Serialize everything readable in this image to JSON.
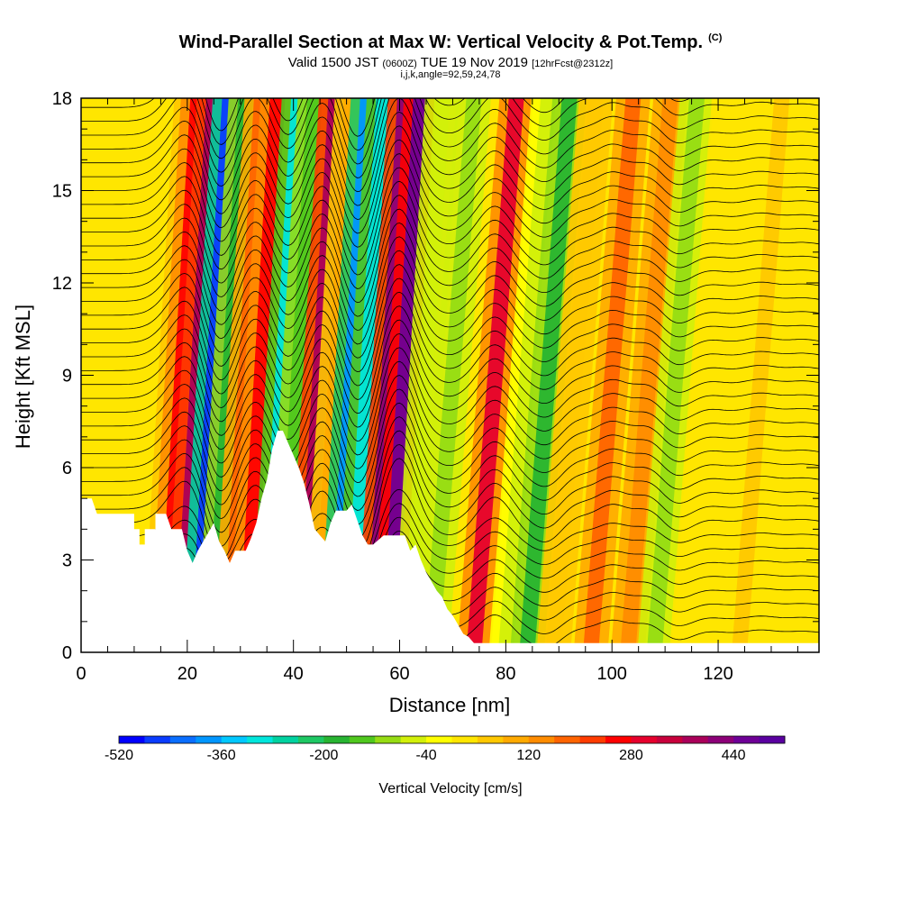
{
  "title": "Wind-Parallel Section at Max W: Vertical Velocity & Pot.Temp.",
  "title_mark": "(C)",
  "subtitle_main_a": "Valid 1500 JST",
  "subtitle_small_a": "(0600Z)",
  "subtitle_main_b": "TUE 19 Nov 2019",
  "subtitle_small_b": "[12hrFcst@2312z]",
  "subtitle_line3": "i,j,k,angle=92,59,24,78",
  "chart_data": {
    "type": "heatmap",
    "xlabel": "Distance [nm]",
    "ylabel": "Height [Kft MSL]",
    "xlim": [
      0,
      139
    ],
    "ylim": [
      0,
      18
    ],
    "x_ticks": [
      "0",
      "20",
      "40",
      "60",
      "80",
      "100",
      "120"
    ],
    "y_ticks": [
      "0",
      "3",
      "6",
      "9",
      "12",
      "15",
      "18"
    ],
    "colorbar": {
      "label": "Vertical Velocity [cm/s]",
      "tick_labels": [
        "-520",
        "-360",
        "-200",
        "-40",
        "120",
        "280",
        "440"
      ],
      "range": [
        -520,
        520
      ],
      "colors": [
        "#0000ff",
        "#0a3cff",
        "#0a6eff",
        "#0096ff",
        "#00c8ff",
        "#00e6dc",
        "#00d2a0",
        "#1ec864",
        "#28b432",
        "#50c81e",
        "#96dc14",
        "#d2f00a",
        "#ffff00",
        "#ffe600",
        "#ffc800",
        "#ffaa00",
        "#ff8c00",
        "#ff6400",
        "#ff3c00",
        "#ff0000",
        "#e6002d",
        "#c8003c",
        "#aa005a",
        "#8c0078",
        "#6e0096",
        "#5a00a0"
      ]
    },
    "vertical_velocity_bands": [
      {
        "x": 16,
        "w": 70
      },
      {
        "x": 19,
        "w": 260
      },
      {
        "x": 22,
        "w": 380
      },
      {
        "x": 25,
        "w": -480
      },
      {
        "x": 28,
        "w": -200
      },
      {
        "x": 31,
        "w": 180
      },
      {
        "x": 34,
        "w": 260
      },
      {
        "x": 38,
        "w": -300
      },
      {
        "x": 41,
        "w": -160
      },
      {
        "x": 45,
        "w": 400
      },
      {
        "x": 48,
        "w": 120
      },
      {
        "x": 51,
        "w": -380
      },
      {
        "x": 54,
        "w": -300
      },
      {
        "x": 58,
        "w": 420
      },
      {
        "x": 61,
        "w": 480
      },
      {
        "x": 65,
        "w": -80
      },
      {
        "x": 70,
        "w": -120
      },
      {
        "x": 78,
        "w": 300
      },
      {
        "x": 84,
        "w": -60
      },
      {
        "x": 88,
        "w": -200
      },
      {
        "x": 93,
        "w": 80
      },
      {
        "x": 100,
        "w": 200
      },
      {
        "x": 107,
        "w": 160
      },
      {
        "x": 112,
        "w": -120
      },
      {
        "x": 118,
        "w": 40
      },
      {
        "x": 128,
        "w": 60
      },
      {
        "x": 136,
        "w": 40
      }
    ],
    "terrain_height_kft": [
      [
        0,
        5.0
      ],
      [
        2,
        5.0
      ],
      [
        3,
        4.5
      ],
      [
        8,
        4.5
      ],
      [
        10,
        4.5
      ],
      [
        10,
        4.0
      ],
      [
        11,
        4.0
      ],
      [
        11,
        3.5
      ],
      [
        12,
        3.5
      ],
      [
        12,
        4.0
      ],
      [
        14,
        4.0
      ],
      [
        14,
        4.5
      ],
      [
        16,
        4.5
      ],
      [
        17,
        4.0
      ],
      [
        19,
        4.0
      ],
      [
        20,
        3.3
      ],
      [
        21,
        2.9
      ],
      [
        22,
        3.3
      ],
      [
        24,
        3.9
      ],
      [
        25,
        4.2
      ],
      [
        26,
        3.6
      ],
      [
        27,
        3.3
      ],
      [
        28,
        2.9
      ],
      [
        29,
        3.3
      ],
      [
        31,
        3.3
      ],
      [
        32,
        3.7
      ],
      [
        33,
        4.2
      ],
      [
        34,
        5.0
      ],
      [
        35,
        5.6
      ],
      [
        36,
        6.6
      ],
      [
        37,
        7.2
      ],
      [
        38,
        7.2
      ],
      [
        39,
        6.8
      ],
      [
        40,
        6.4
      ],
      [
        41,
        6.0
      ],
      [
        42,
        5.5
      ],
      [
        43,
        4.8
      ],
      [
        44,
        4.0
      ],
      [
        45,
        3.8
      ],
      [
        46,
        3.6
      ],
      [
        47,
        4.2
      ],
      [
        48,
        4.6
      ],
      [
        50,
        4.6
      ],
      [
        51,
        4.8
      ],
      [
        52,
        4.3
      ],
      [
        53,
        3.8
      ],
      [
        54,
        3.5
      ],
      [
        55,
        3.5
      ],
      [
        57,
        3.8
      ],
      [
        59,
        3.8
      ],
      [
        61,
        3.8
      ],
      [
        62,
        3.3
      ],
      [
        63,
        3.5
      ],
      [
        64,
        3.0
      ],
      [
        65,
        2.6
      ],
      [
        66,
        2.3
      ],
      [
        67,
        2.0
      ],
      [
        68,
        1.8
      ],
      [
        69,
        1.4
      ],
      [
        70,
        1.2
      ],
      [
        71,
        0.9
      ],
      [
        72,
        0.6
      ],
      [
        73,
        0.5
      ],
      [
        74,
        0.3
      ],
      [
        80,
        0.3
      ],
      [
        90,
        0.3
      ],
      [
        100,
        0.3
      ],
      [
        110,
        0.3
      ],
      [
        120,
        0.3
      ],
      [
        130,
        0.3
      ],
      [
        139,
        0.3
      ]
    ]
  }
}
